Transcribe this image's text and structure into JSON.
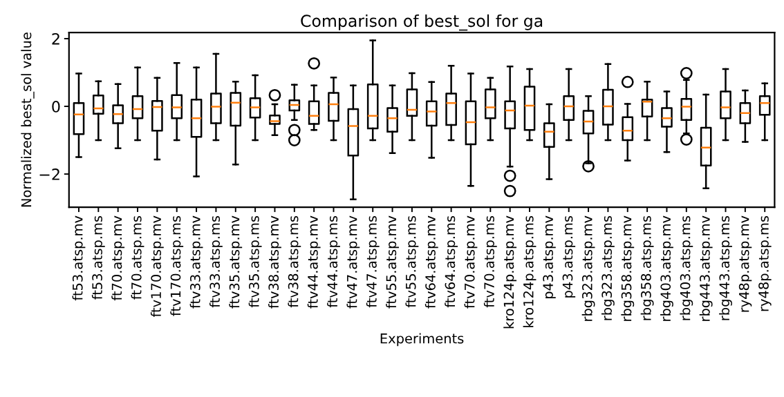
{
  "chart_data": {
    "type": "box",
    "title": "Comparison of best_sol for ga",
    "xlabel": "Experiments",
    "ylabel": "Normalized best_sol value",
    "categories": [
      "ft53.atsp.mv",
      "ft53.atsp.ms",
      "ft70.atsp.mv",
      "ft70.atsp.ms",
      "ftv170.atsp.mv",
      "ftv170.atsp.ms",
      "ftv33.atsp.mv",
      "ftv33.atsp.ms",
      "ftv35.atsp.mv",
      "ftv35.atsp.ms",
      "ftv38.atsp.mv",
      "ftv38.atsp.ms",
      "ftv44.atsp.mv",
      "ftv44.atsp.ms",
      "ftv47.atsp.mv",
      "ftv47.atsp.ms",
      "ftv55.atsp.mv",
      "ftv55.atsp.ms",
      "ftv64.atsp.mv",
      "ftv64.atsp.ms",
      "ftv70.atsp.mv",
      "ftv70.atsp.ms",
      "kro124p.atsp.mv",
      "kro124p.atsp.ms",
      "p43.atsp.mv",
      "p43.atsp.ms",
      "rbg323.atsp.mv",
      "rbg323.atsp.ms",
      "rbg358.atsp.mv",
      "rbg358.atsp.ms",
      "rbg403.atsp.mv",
      "rbg403.atsp.ms",
      "rbg443.atsp.mv",
      "rbg443.atsp.ms",
      "ry48p.atsp.mv",
      "ry48p.atsp.ms"
    ],
    "boxes": [
      {
        "low": -1.5,
        "q1": -0.82,
        "median": -0.24,
        "q3": 0.1,
        "high": 0.97
      },
      {
        "low": -1.0,
        "q1": -0.22,
        "median": -0.06,
        "q3": 0.32,
        "high": 0.74
      },
      {
        "low": -1.24,
        "q1": -0.5,
        "median": -0.23,
        "q3": 0.03,
        "high": 0.66
      },
      {
        "low": -1.0,
        "q1": -0.35,
        "median": -0.08,
        "q3": 0.3,
        "high": 1.15
      },
      {
        "low": -1.57,
        "q1": -0.72,
        "median": -0.02,
        "q3": 0.16,
        "high": 0.84
      },
      {
        "low": -1.0,
        "q1": -0.35,
        "median": -0.03,
        "q3": 0.33,
        "high": 1.28
      },
      {
        "low": -2.07,
        "q1": -0.9,
        "median": -0.35,
        "q3": 0.2,
        "high": 1.15
      },
      {
        "low": -1.0,
        "q1": -0.5,
        "median": -0.01,
        "q3": 0.38,
        "high": 1.55
      },
      {
        "low": -1.72,
        "q1": -0.57,
        "median": 0.11,
        "q3": 0.4,
        "high": 0.73
      },
      {
        "low": -1.0,
        "q1": -0.33,
        "median": -0.03,
        "q3": 0.24,
        "high": 0.92
      },
      {
        "low": -0.85,
        "q1": -0.52,
        "median": -0.44,
        "q3": -0.27,
        "high": 0.06,
        "outliers": [
          0.33
        ]
      },
      {
        "low": -0.4,
        "q1": -0.12,
        "median": 0.04,
        "q3": 0.18,
        "high": 0.64,
        "outliers": [
          -0.7,
          -1.0
        ]
      },
      {
        "low": -0.7,
        "q1": -0.52,
        "median": -0.28,
        "q3": 0.15,
        "high": 0.62,
        "outliers": [
          1.27
        ]
      },
      {
        "low": -1.0,
        "q1": -0.43,
        "median": 0.06,
        "q3": 0.4,
        "high": 0.85
      },
      {
        "low": -2.75,
        "q1": -1.45,
        "median": -0.58,
        "q3": -0.08,
        "high": 0.62
      },
      {
        "low": -1.0,
        "q1": -0.65,
        "median": -0.28,
        "q3": 0.65,
        "high": 1.95
      },
      {
        "low": -1.38,
        "q1": -0.75,
        "median": -0.35,
        "q3": -0.05,
        "high": 0.62
      },
      {
        "low": -1.0,
        "q1": -0.28,
        "median": -0.1,
        "q3": 0.5,
        "high": 0.98
      },
      {
        "low": -1.52,
        "q1": -0.57,
        "median": -0.15,
        "q3": 0.15,
        "high": 0.72
      },
      {
        "low": -1.0,
        "q1": -0.55,
        "median": 0.1,
        "q3": 0.38,
        "high": 1.2
      },
      {
        "low": -2.35,
        "q1": -1.12,
        "median": -0.47,
        "q3": 0.15,
        "high": 0.97
      },
      {
        "low": -1.0,
        "q1": -0.35,
        "median": -0.03,
        "q3": 0.5,
        "high": 0.84
      },
      {
        "low": -1.78,
        "q1": -0.65,
        "median": -0.12,
        "q3": 0.15,
        "high": 1.18,
        "outliers": [
          -2.05,
          -2.5
        ]
      },
      {
        "low": -1.0,
        "q1": -0.7,
        "median": 0.02,
        "q3": 0.58,
        "high": 1.1
      },
      {
        "low": -2.15,
        "q1": -1.2,
        "median": -0.75,
        "q3": -0.5,
        "high": 0.06
      },
      {
        "low": -1.0,
        "q1": -0.4,
        "median": 0.0,
        "q3": 0.3,
        "high": 1.1
      },
      {
        "low": -1.68,
        "q1": -0.8,
        "median": -0.45,
        "q3": -0.13,
        "high": 0.3,
        "outliers": [
          -1.77
        ]
      },
      {
        "low": -1.0,
        "q1": -0.54,
        "median": 0.0,
        "q3": 0.49,
        "high": 1.25
      },
      {
        "low": -1.6,
        "q1": -1.0,
        "median": -0.72,
        "q3": -0.32,
        "high": 0.07,
        "outliers": [
          0.72
        ]
      },
      {
        "low": -1.0,
        "q1": -0.3,
        "median": 0.14,
        "q3": 0.2,
        "high": 0.73
      },
      {
        "low": -1.35,
        "q1": -0.6,
        "median": -0.35,
        "q3": -0.05,
        "high": 0.44
      },
      {
        "low": -0.8,
        "q1": -0.4,
        "median": -0.01,
        "q3": 0.22,
        "high": 0.78,
        "outliers": [
          0.98,
          -0.98
        ]
      },
      {
        "low": -2.42,
        "q1": -1.75,
        "median": -1.22,
        "q3": -0.63,
        "high": 0.35
      },
      {
        "low": -1.0,
        "q1": -0.35,
        "median": -0.03,
        "q3": 0.44,
        "high": 1.1
      },
      {
        "low": -1.05,
        "q1": -0.5,
        "median": -0.2,
        "q3": 0.1,
        "high": 0.47
      },
      {
        "low": -1.0,
        "q1": -0.25,
        "median": 0.1,
        "q3": 0.3,
        "high": 0.68
      }
    ],
    "ylim": [
      -2.98,
      2.18
    ],
    "yticks": [
      {
        "value": -2,
        "label": "−2"
      },
      0,
      2
    ],
    "grid": false
  }
}
